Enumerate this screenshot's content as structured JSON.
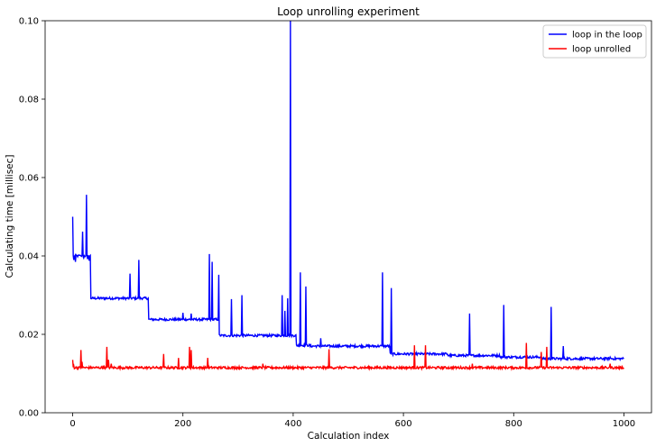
{
  "chart_data": {
    "type": "line",
    "title": "Loop unrolling experiment",
    "xlabel": "Calculation index",
    "ylabel": "Calculating time [millisec]",
    "xlim": [
      -50,
      1050
    ],
    "ylim": [
      0,
      0.1
    ],
    "xticks": [
      0,
      200,
      400,
      600,
      800,
      1000
    ],
    "xtick_labels": [
      "0",
      "200",
      "400",
      "600",
      "800",
      "1000"
    ],
    "yticks": [
      0.0,
      0.02,
      0.04,
      0.06,
      0.08,
      0.1
    ],
    "ytick_labels": [
      "0.00",
      "0.02",
      "0.04",
      "0.06",
      "0.08",
      "0.10"
    ],
    "grid": false,
    "legend_position": "top-right",
    "series": [
      {
        "name": "loop in the loop",
        "color": "#0000ff",
        "segments": [
          {
            "x0": 0,
            "x1": 32,
            "y": 0.04
          },
          {
            "x0": 33,
            "x1": 137,
            "y": 0.0292
          },
          {
            "x0": 138,
            "x1": 265,
            "y": 0.0238
          },
          {
            "x0": 266,
            "x1": 405,
            "y": 0.0197
          },
          {
            "x0": 406,
            "x1": 430,
            "y": 0.0172
          },
          {
            "x0": 431,
            "x1": 575,
            "y": 0.017
          },
          {
            "x0": 576,
            "x1": 680,
            "y": 0.015
          },
          {
            "x0": 681,
            "x1": 775,
            "y": 0.0146
          },
          {
            "x0": 776,
            "x1": 850,
            "y": 0.0142
          },
          {
            "x0": 851,
            "x1": 1000,
            "y": 0.0138
          }
        ],
        "points": [
          [
            0,
            0.05
          ],
          [
            2,
            0.039
          ],
          [
            5,
            0.0385
          ],
          [
            10,
            0.0402
          ],
          [
            15,
            0.04
          ],
          [
            18,
            0.0462
          ],
          [
            20,
            0.0395
          ],
          [
            25,
            0.0556
          ],
          [
            27,
            0.0392
          ],
          [
            30,
            0.0388
          ],
          [
            104,
            0.0355
          ],
          [
            120,
            0.039
          ],
          [
            200,
            0.0255
          ],
          [
            215,
            0.0253
          ],
          [
            248,
            0.0405
          ],
          [
            253,
            0.0385
          ],
          [
            265,
            0.0352
          ],
          [
            288,
            0.029
          ],
          [
            307,
            0.03
          ],
          [
            380,
            0.03
          ],
          [
            385,
            0.026
          ],
          [
            390,
            0.0292
          ],
          [
            395,
            0.1
          ],
          [
            413,
            0.0358
          ],
          [
            423,
            0.0322
          ],
          [
            450,
            0.019
          ],
          [
            562,
            0.0358
          ],
          [
            578,
            0.0318
          ],
          [
            720,
            0.0253
          ],
          [
            782,
            0.0275
          ],
          [
            868,
            0.027
          ],
          [
            890,
            0.017
          ],
          [
            975,
            0.0142
          ]
        ]
      },
      {
        "name": "loop unrolled",
        "color": "#ff0000",
        "segments": [
          {
            "x0": 0,
            "x1": 1000,
            "y": 0.0115
          }
        ],
        "points": [
          [
            0,
            0.0135
          ],
          [
            2,
            0.012
          ],
          [
            15,
            0.016
          ],
          [
            17,
            0.013
          ],
          [
            55,
            0.012
          ],
          [
            62,
            0.0168
          ],
          [
            65,
            0.0135
          ],
          [
            70,
            0.0125
          ],
          [
            165,
            0.015
          ],
          [
            192,
            0.014
          ],
          [
            212,
            0.0168
          ],
          [
            215,
            0.016
          ],
          [
            245,
            0.014
          ],
          [
            345,
            0.0125
          ],
          [
            465,
            0.0162
          ],
          [
            620,
            0.0172
          ],
          [
            640,
            0.0172
          ],
          [
            725,
            0.0125
          ],
          [
            823,
            0.0178
          ],
          [
            850,
            0.0155
          ],
          [
            860,
            0.0168
          ],
          [
            975,
            0.0125
          ]
        ]
      }
    ]
  }
}
